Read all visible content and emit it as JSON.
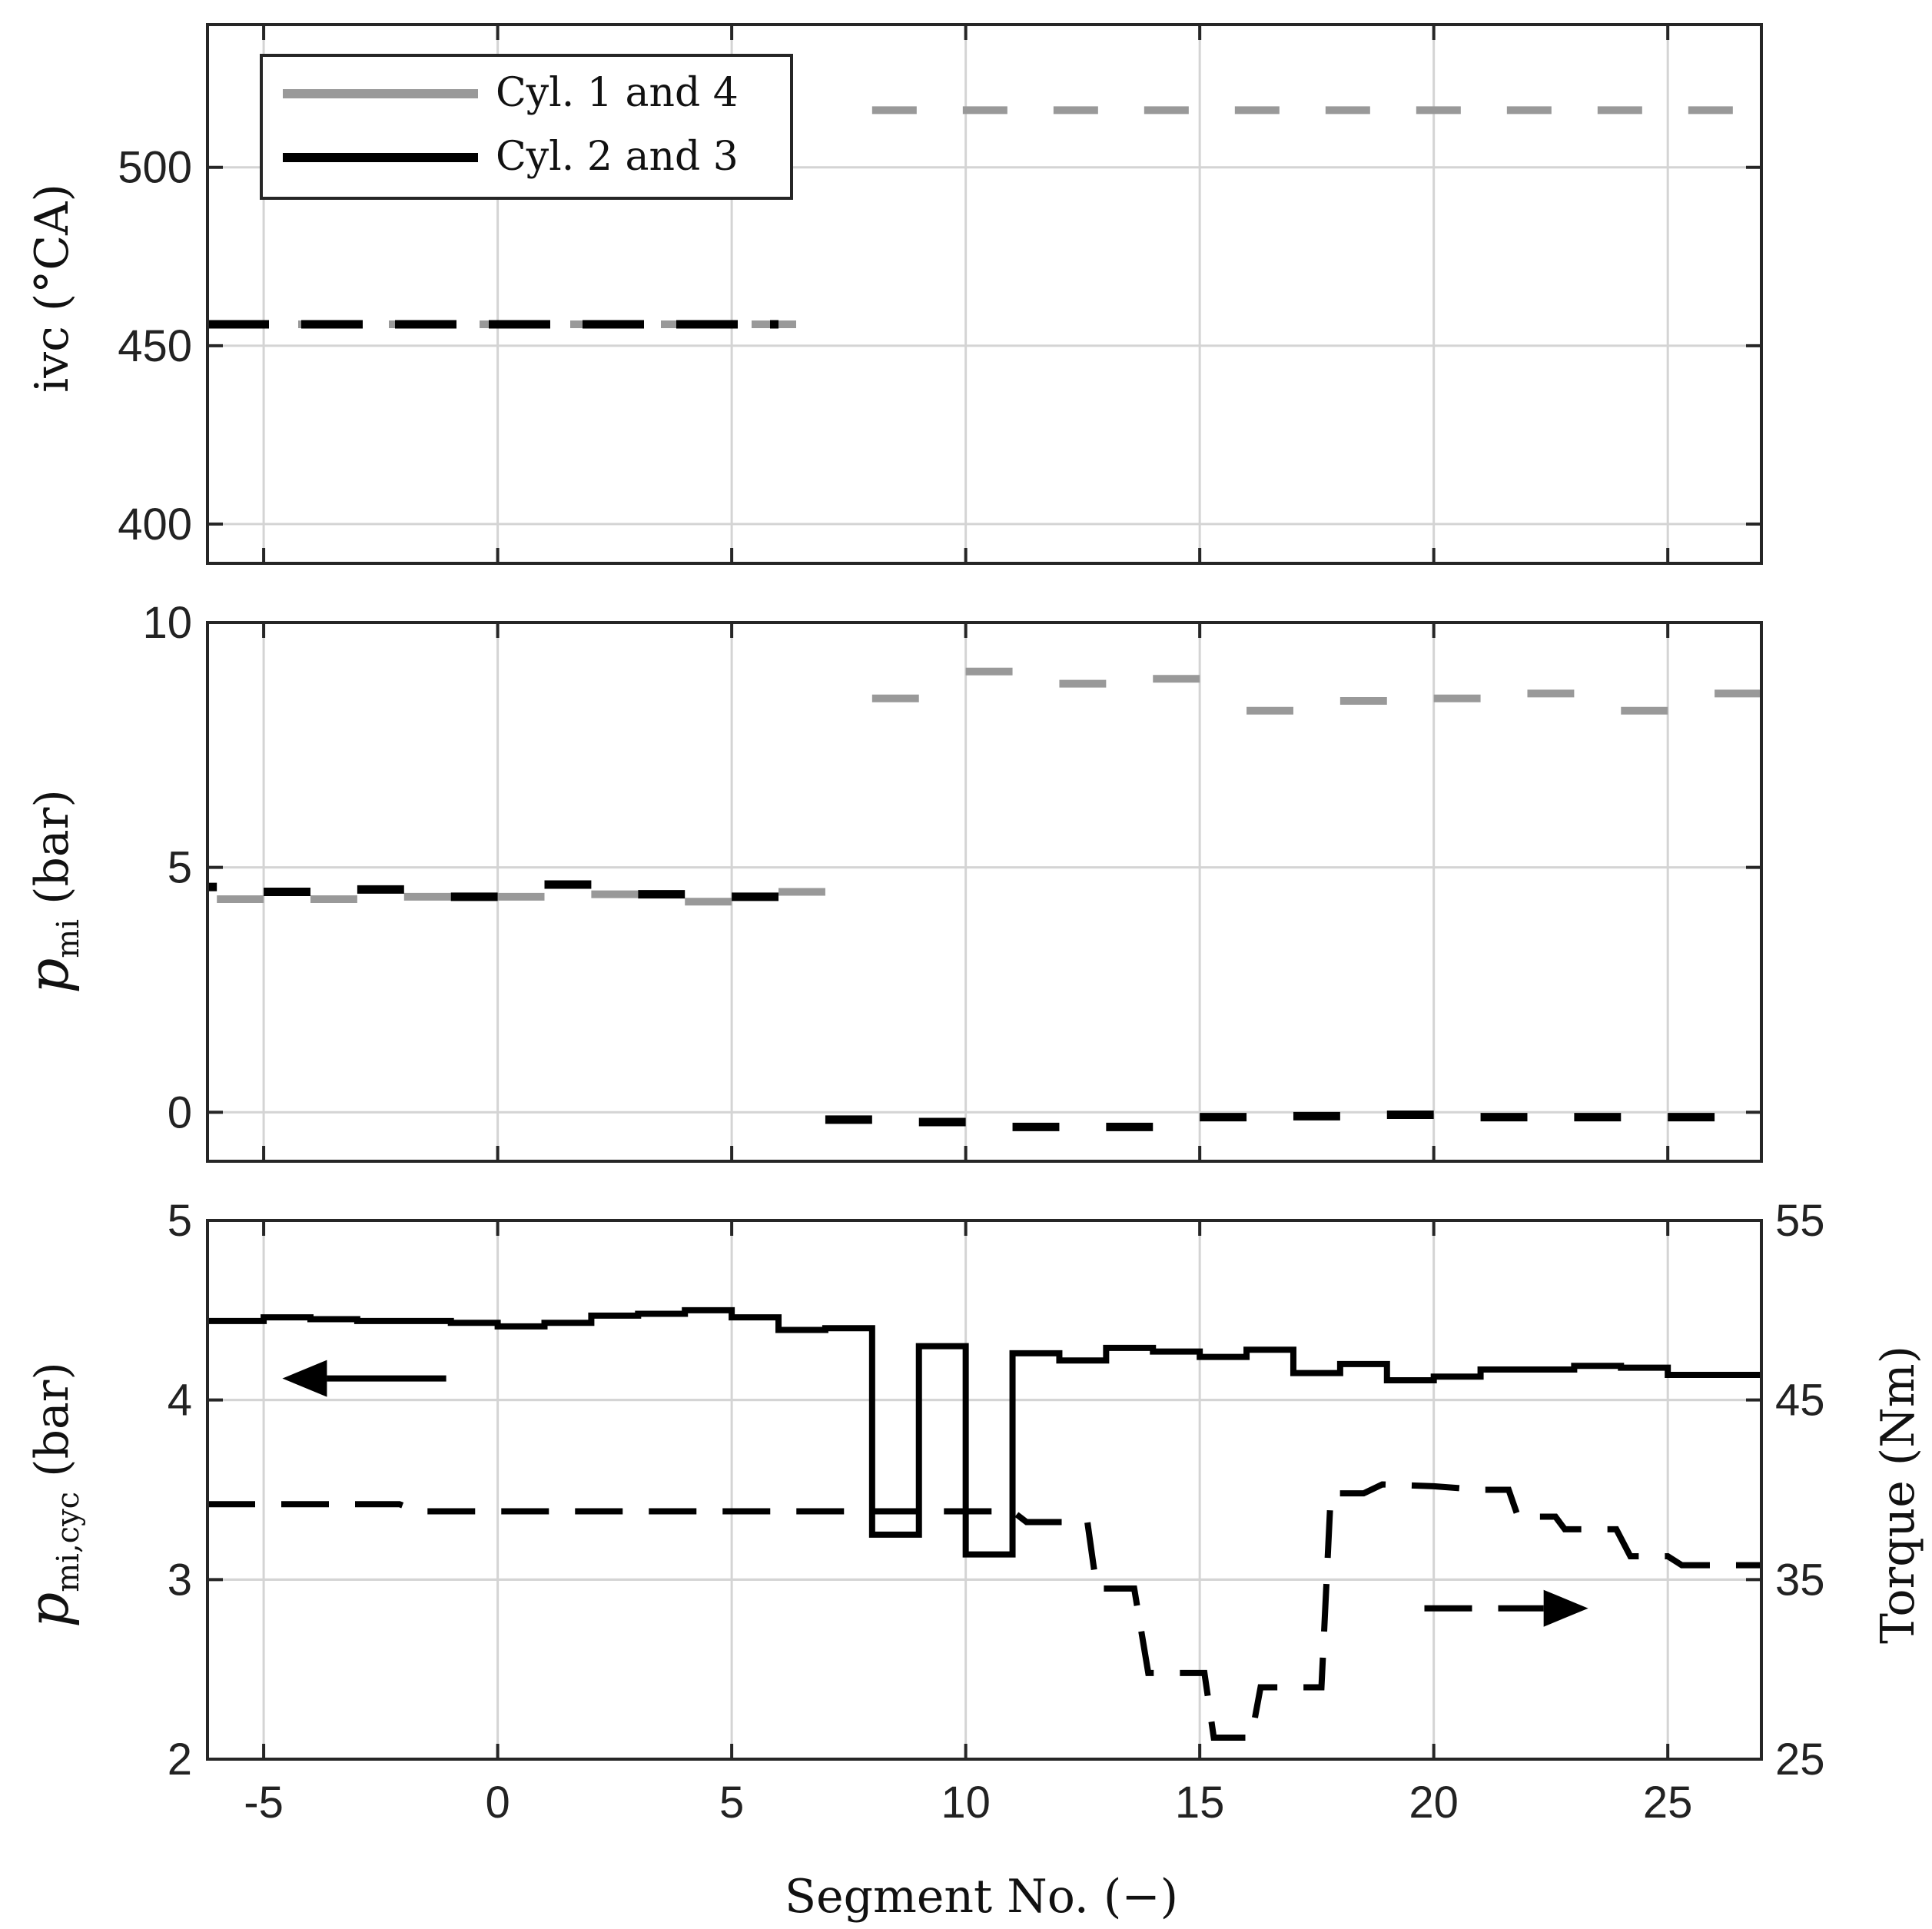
{
  "colors": {
    "cyl14": "#999999",
    "cyl23": "#000000",
    "grid": "#d4d4d4",
    "axis": "#262626"
  },
  "chart_data": [
    {
      "type": "line",
      "panel": "top",
      "ylabel": "ivc (°CA)",
      "xlim": [
        -6.2,
        27
      ],
      "ylim": [
        389,
        540
      ],
      "yticks": [
        400,
        450,
        500
      ],
      "ytick_labels": [
        "400",
        "450",
        "500"
      ],
      "xticks": [
        -5,
        0,
        5,
        10,
        15,
        20,
        25
      ],
      "grid": true,
      "legend": {
        "position": "top-left",
        "entries": [
          "Cyl. 1 and 4",
          "Cyl. 2 and 3"
        ]
      },
      "series": [
        {
          "name": "Cyl. 1 and 4",
          "style": "dashed",
          "color": "#999999",
          "segments": [
            [
              -6.2,
              7,
              456
            ],
            [
              8,
              27,
              516
            ]
          ]
        },
        {
          "name": "Cyl. 2 and 3",
          "style": "dashed",
          "color": "#000000",
          "segments": [
            [
              -6.2,
              6,
              456
            ]
          ]
        }
      ]
    },
    {
      "type": "line",
      "panel": "middle",
      "ylabel": "p_mi (bar)",
      "xlim": [
        -6.2,
        27
      ],
      "ylim": [
        -1,
        10
      ],
      "yticks": [
        0,
        5,
        10
      ],
      "ytick_labels": [
        "0",
        "5",
        "10"
      ],
      "xticks": [
        -5,
        0,
        5,
        10,
        15,
        20,
        25
      ],
      "grid": true,
      "series": [
        {
          "name": "Cyl. 1 and 4",
          "style": "dashes",
          "color": "#999999",
          "segments": [
            [
              -6,
              -5,
              4.35
            ],
            [
              -4,
              -3,
              4.35
            ],
            [
              -2,
              -1,
              4.4
            ],
            [
              0,
              1,
              4.4
            ],
            [
              2,
              3,
              4.45
            ],
            [
              4,
              5,
              4.3
            ],
            [
              6,
              7,
              4.5
            ],
            [
              8,
              9,
              8.45
            ],
            [
              10,
              11,
              9.0
            ],
            [
              12,
              13,
              8.75
            ],
            [
              14,
              15,
              8.85
            ],
            [
              16,
              17,
              8.2
            ],
            [
              18,
              19,
              8.4
            ],
            [
              20,
              21,
              8.45
            ],
            [
              22,
              23,
              8.55
            ],
            [
              24,
              25,
              8.2
            ],
            [
              26,
              27,
              8.55
            ]
          ]
        },
        {
          "name": "Cyl. 2 and 3",
          "style": "dashes",
          "color": "#000000",
          "segments": [
            [
              -6.2,
              -6,
              4.6
            ],
            [
              -5,
              -4,
              4.5
            ],
            [
              -3,
              -2,
              4.55
            ],
            [
              -1,
              0,
              4.4
            ],
            [
              1,
              2,
              4.65
            ],
            [
              3,
              4,
              4.45
            ],
            [
              5,
              6,
              4.4
            ],
            [
              7,
              8,
              -0.15
            ],
            [
              9,
              10,
              -0.2
            ],
            [
              11,
              12,
              -0.3
            ],
            [
              13,
              14,
              -0.3
            ],
            [
              15,
              16,
              -0.1
            ],
            [
              17,
              18,
              -0.08
            ],
            [
              19,
              20,
              -0.05
            ],
            [
              21,
              22,
              -0.1
            ],
            [
              23,
              24,
              -0.1
            ],
            [
              25,
              26,
              -0.1
            ]
          ]
        }
      ]
    },
    {
      "type": "line",
      "panel": "bottom",
      "ylabel": "p_mi,cyc (bar)",
      "y2label": "Torque (Nm)",
      "xlabel": "Segment No. (−)",
      "xlim": [
        -6.2,
        27
      ],
      "ylim": [
        2,
        5
      ],
      "y2lim": [
        25,
        55
      ],
      "yticks": [
        2,
        3,
        4,
        5
      ],
      "ytick_labels": [
        "2",
        "3",
        "4",
        "5"
      ],
      "y2ticks": [
        25,
        35,
        45,
        55
      ],
      "y2tick_labels": [
        "25",
        "35",
        "45",
        "55"
      ],
      "xticks": [
        -5,
        0,
        5,
        10,
        15,
        20,
        25
      ],
      "xtick_labels": [
        "-5",
        "0",
        "5",
        "10",
        "15",
        "20",
        "25"
      ],
      "grid": true,
      "series": [
        {
          "name": "p_mi,cyc",
          "axis": "left",
          "style": "solid",
          "color": "#000000",
          "x": [
            -6.2,
            -5,
            -4,
            -3,
            -2,
            -1,
            0,
            1,
            2,
            3,
            4,
            5,
            6,
            7,
            8,
            9,
            10,
            11,
            12,
            13,
            14,
            15,
            16,
            17,
            18,
            19,
            20,
            21,
            22,
            23,
            24,
            25,
            26,
            27
          ],
          "values": [
            4.44,
            4.46,
            4.45,
            4.44,
            4.44,
            4.43,
            4.41,
            4.43,
            4.47,
            4.48,
            4.5,
            4.46,
            4.39,
            4.4,
            3.25,
            4.3,
            3.14,
            4.26,
            4.22,
            4.29,
            4.27,
            4.24,
            4.28,
            4.15,
            4.2,
            4.11,
            4.13,
            4.17,
            4.17,
            4.19,
            4.18,
            4.14,
            4.14,
            4.14
          ]
        },
        {
          "name": "Torque",
          "axis": "right",
          "style": "dashed",
          "color": "#000000",
          "x": [
            -6.2,
            -2.1,
            -1.7,
            11.0,
            11.3,
            12.6,
            12.8,
            13.6,
            13.9,
            15.1,
            15.3,
            16.1,
            16.3,
            17.6,
            17.8,
            18.5,
            18.9,
            20.0,
            21.0,
            21.6,
            21.8,
            22.6,
            22.8,
            23.9,
            24.2,
            25.0,
            25.3,
            27.0
          ],
          "values": [
            39.2,
            39.2,
            38.8,
            38.8,
            38.2,
            38.2,
            34.5,
            34.5,
            29.8,
            29.8,
            26.2,
            26.2,
            29.0,
            29.0,
            39.8,
            39.8,
            40.3,
            40.2,
            40.0,
            40.0,
            38.5,
            38.5,
            37.8,
            37.8,
            36.3,
            36.3,
            35.8,
            35.8
          ]
        }
      ],
      "annotations": [
        {
          "type": "arrow",
          "direction": "left",
          "target_axis": "left",
          "x_from": -1.1,
          "x_to": -4.6,
          "y": 4.12
        },
        {
          "type": "arrow",
          "direction": "right",
          "target_axis": "right",
          "x_from": 19.8,
          "x_to": 23.3,
          "y": 33.4
        }
      ]
    }
  ]
}
